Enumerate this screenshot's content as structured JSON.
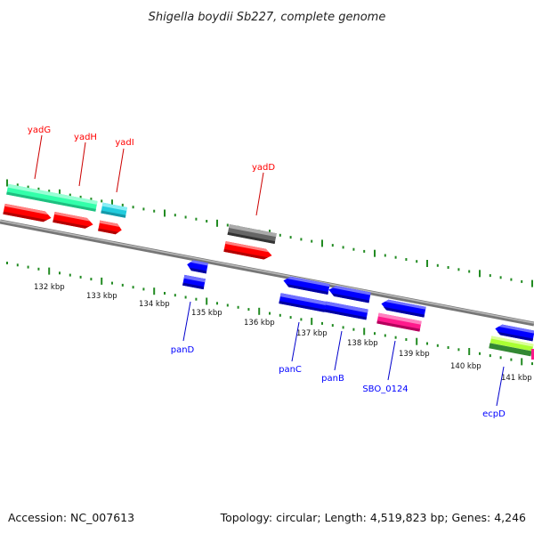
{
  "title": "Shigella boydii Sb227, complete genome",
  "footer": {
    "accession": "Accession: NC_007613",
    "summary": "Topology: circular; Length: 4,519,823 bp; Genes: 4,246"
  },
  "ticks": [
    "132 kbp",
    "133 kbp",
    "134 kbp",
    "135 kbp",
    "136 kbp",
    "137 kbp",
    "138 kbp",
    "139 kbp",
    "140 kbp",
    "141 kbp"
  ],
  "genes_forward": [
    {
      "name": "yadG",
      "color": "#ff0000"
    },
    {
      "name": "yadH",
      "color": "#ff0000"
    },
    {
      "name": "yadI",
      "color": "#ff0000"
    },
    {
      "name": "yadD",
      "color": "#ff0000"
    }
  ],
  "genes_reverse": [
    {
      "name": "panD",
      "color": "#0000ff"
    },
    {
      "name": "panC",
      "color": "#0000ff"
    },
    {
      "name": "panB",
      "color": "#0000ff"
    },
    {
      "name": "SBO_0124",
      "color": "#0000ff"
    },
    {
      "name": "ecpD",
      "color": "#0000ff"
    }
  ],
  "colors": {
    "forward_cds": "#ff0000",
    "reverse_cds": "#0000ff",
    "forward_feature": "#33ffaa",
    "trna_like": "#22ccdd",
    "pseudo": "#666666",
    "magenta_feature": "#ff1a8c",
    "lime_feature": "#aaff33",
    "dark_green_feature": "#338833",
    "dot_tick": "#228b22",
    "backbone": "#888888"
  }
}
